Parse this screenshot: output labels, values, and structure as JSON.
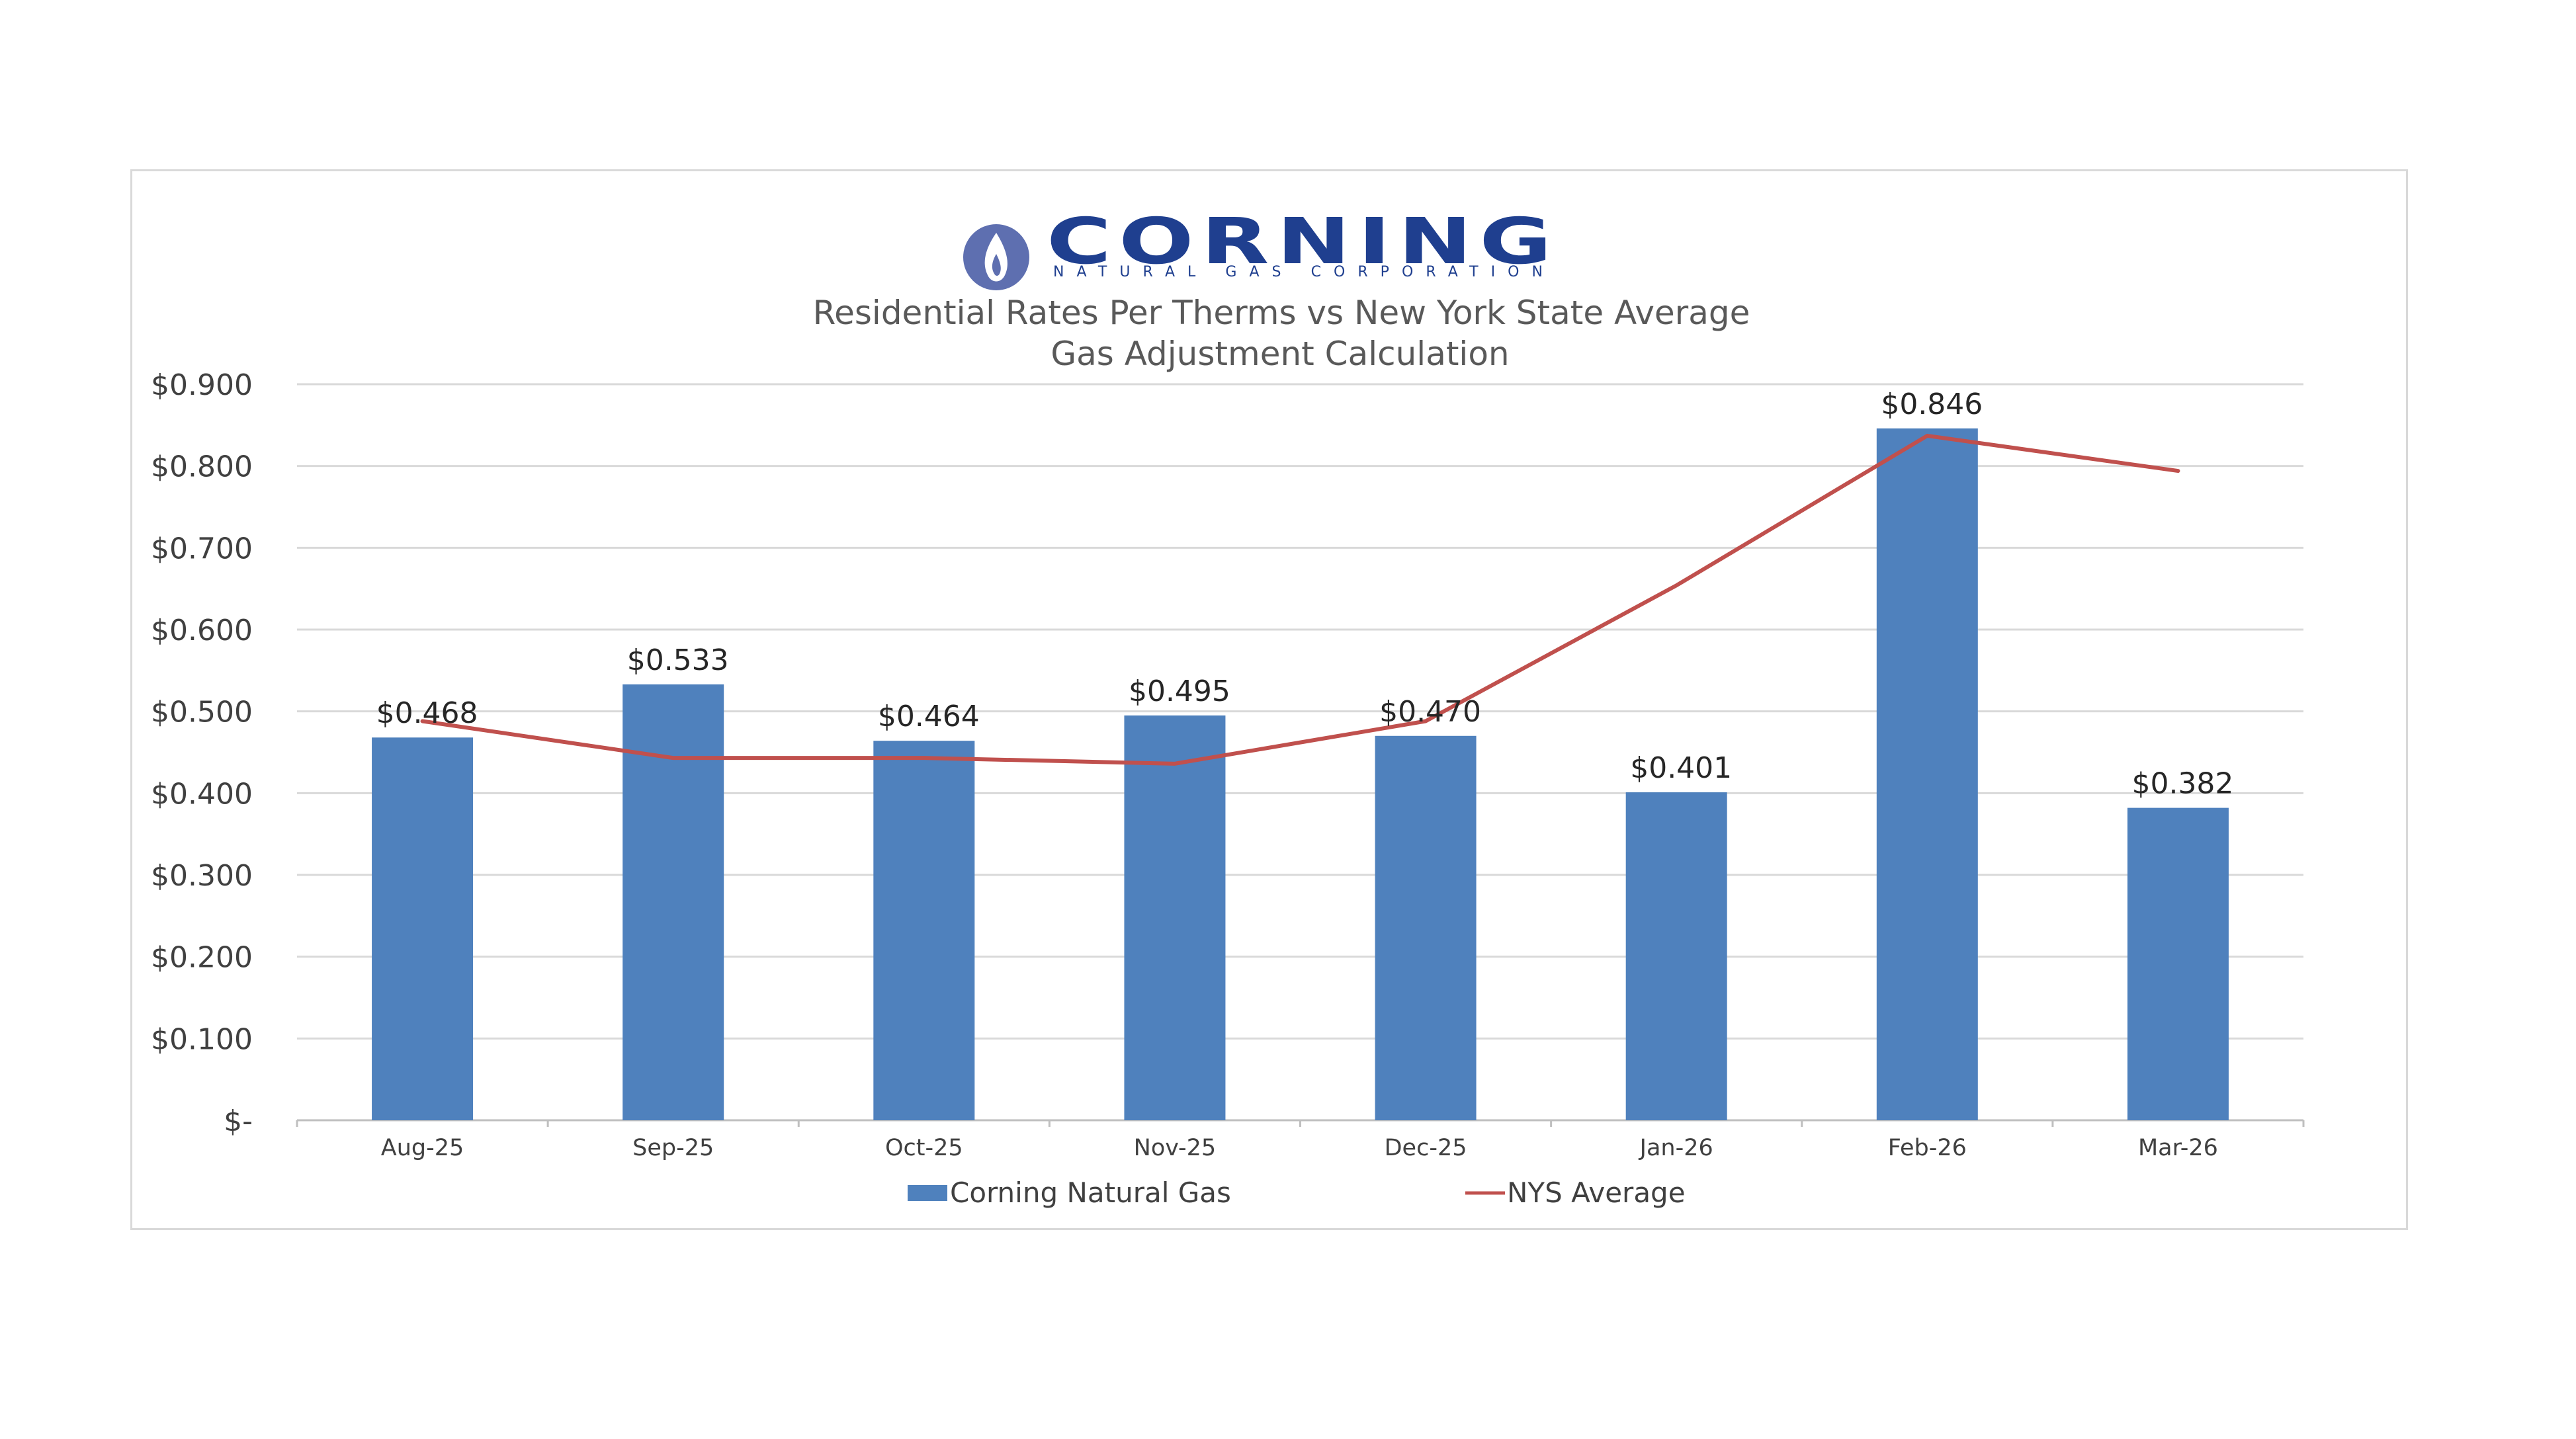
{
  "logo": {
    "word": "CORNING",
    "subtitle": "NATURAL GAS CORPORATION",
    "color": "#1f3f8f",
    "icon": "flame-icon"
  },
  "chart_data": {
    "type": "bar",
    "title": "Residential Rates Per Therms vs New York State Average",
    "subtitle": "Gas Adjustment Calculation",
    "xlabel": "",
    "ylabel": "",
    "categories": [
      "Aug-25",
      "Sep-25",
      "Oct-25",
      "Nov-25",
      "Dec-25",
      "Jan-26",
      "Feb-26",
      "Mar-26"
    ],
    "ylim": [
      0,
      0.9
    ],
    "yticks": [
      {
        "value": 0.9,
        "label": "$0.900"
      },
      {
        "value": 0.8,
        "label": "$0.800"
      },
      {
        "value": 0.7,
        "label": "$0.700"
      },
      {
        "value": 0.6,
        "label": "$0.600"
      },
      {
        "value": 0.5,
        "label": "$0.500"
      },
      {
        "value": 0.4,
        "label": "$0.400"
      },
      {
        "value": 0.3,
        "label": "$0.300"
      },
      {
        "value": 0.2,
        "label": "$0.200"
      },
      {
        "value": 0.1,
        "label": "$0.100"
      },
      {
        "value": 0,
        "label": "$-"
      }
    ],
    "grid": true,
    "legend_position": "bottom",
    "series": [
      {
        "name": "Corning Natural Gas",
        "type": "bar",
        "color": "#4f81bd",
        "values": [
          0.468,
          0.533,
          0.464,
          0.495,
          0.47,
          0.401,
          0.846,
          0.382
        ],
        "labels": [
          "$0.468",
          "$0.533",
          "$0.464",
          "$0.495",
          "$0.470",
          "$0.401",
          "$0.846",
          "$0.382"
        ]
      },
      {
        "name": "NYS Average",
        "type": "line",
        "color": "#c0504d",
        "values": [
          0.488,
          0.443,
          0.443,
          0.436,
          0.488,
          0.654,
          0.837,
          0.794
        ]
      }
    ]
  }
}
